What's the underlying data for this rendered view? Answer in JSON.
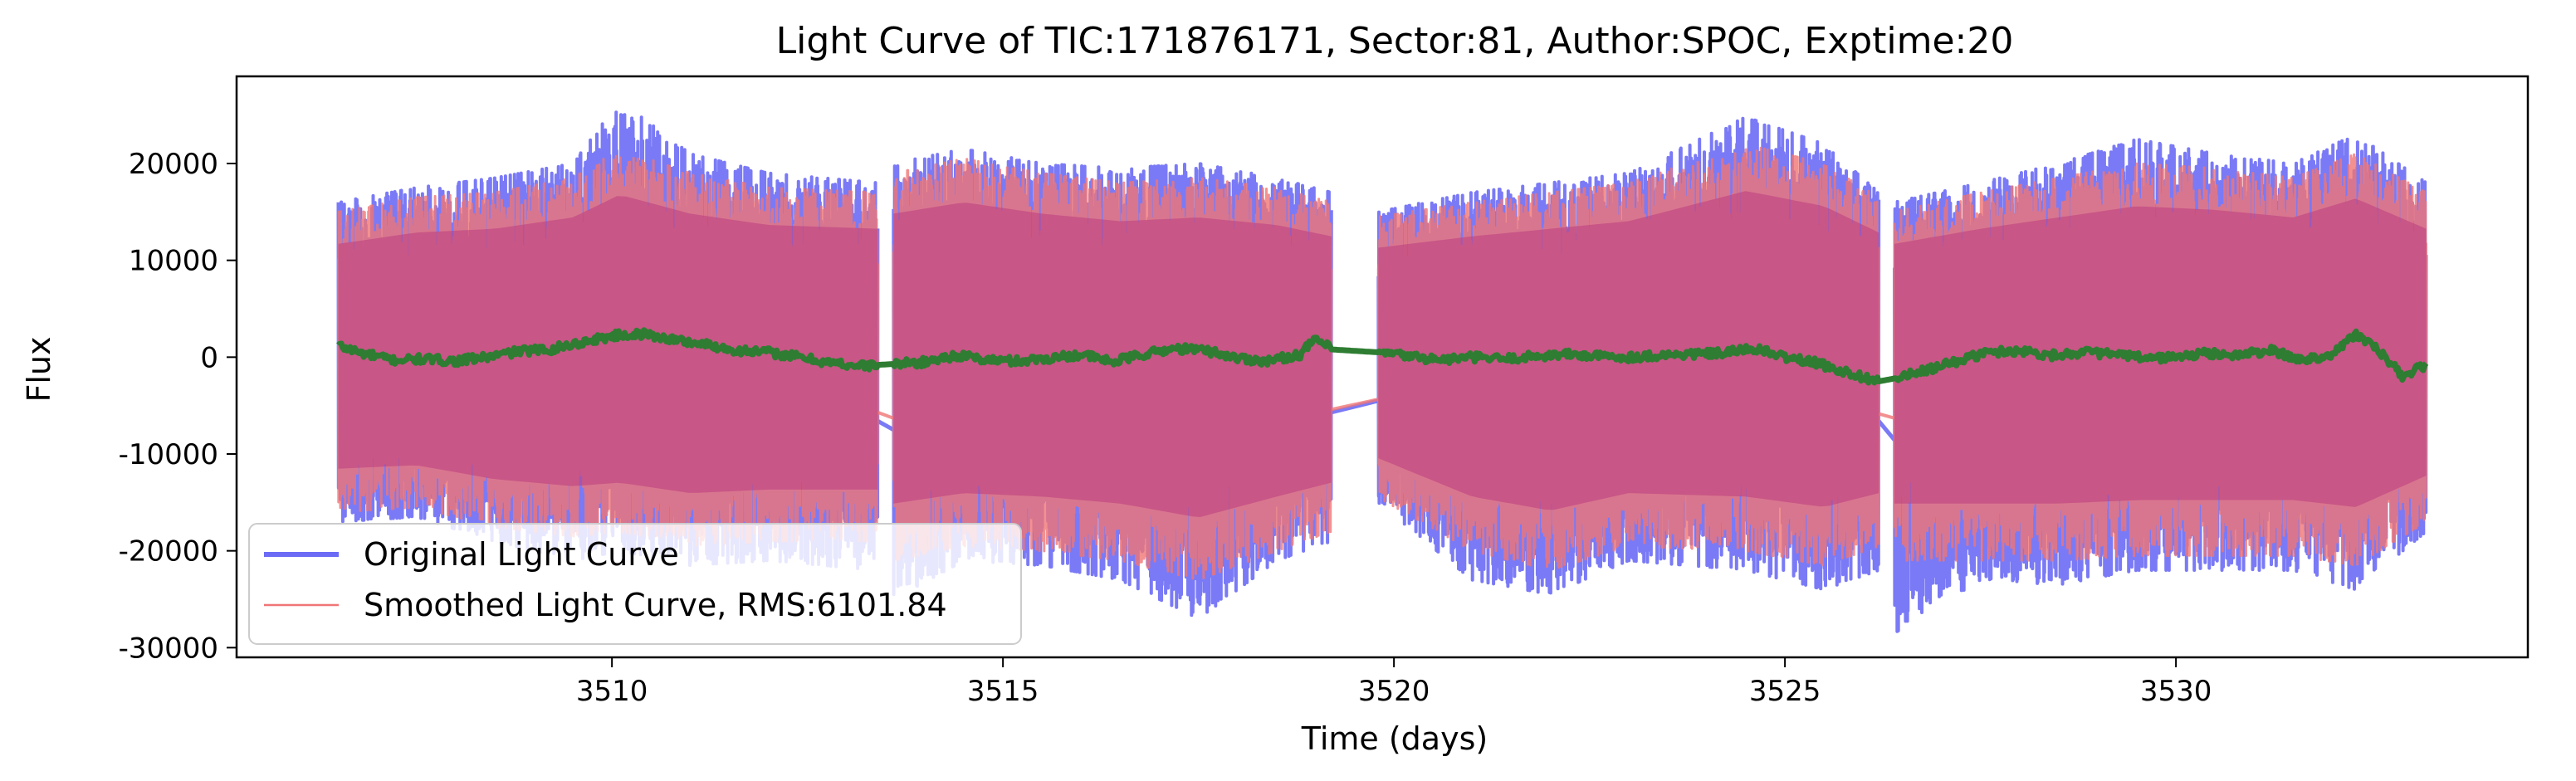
{
  "chart_data": {
    "type": "line",
    "title": "Light Curve of TIC:171876171, Sector:81, Author:SPOC, Exptime:20",
    "xlabel": "Time (days)",
    "ylabel": "Flux",
    "xlim": [
      3505.2,
      3534.5
    ],
    "ylim": [
      -31000,
      29000
    ],
    "xticks": [
      3510,
      3515,
      3520,
      3525,
      3530
    ],
    "yticks": [
      20000,
      10000,
      0,
      -10000,
      -20000,
      -30000
    ],
    "grid": false,
    "legend_position": "lower-left",
    "segments": [
      [
        3506.5,
        3513.4
      ],
      [
        3513.6,
        3519.2
      ],
      [
        3519.8,
        3526.2
      ],
      [
        3526.4,
        3533.2
      ]
    ],
    "series": [
      {
        "name": "Original Light Curve",
        "style": "band",
        "color": "#6b6bf5",
        "envelope": {
          "x": [
            3506.5,
            3507.5,
            3508.5,
            3509.5,
            3510.1,
            3511,
            3512,
            3513.4,
            3513.6,
            3514.5,
            3515.5,
            3516.5,
            3517.5,
            3518.5,
            3519.2,
            3519.8,
            3521,
            3522,
            3523,
            3524.5,
            3525.5,
            3526.2,
            3526.4,
            3527.5,
            3528.5,
            3529.5,
            3530.5,
            3531.5,
            3532.3,
            3533.2
          ],
          "upper": [
            16000,
            17500,
            18500,
            20000,
            26500,
            21000,
            19000,
            18000,
            20000,
            21500,
            20000,
            19500,
            20000,
            18500,
            17000,
            15000,
            17000,
            18000,
            19000,
            24800,
            22000,
            17000,
            16000,
            18000,
            20000,
            22500,
            21000,
            20000,
            23000,
            18000
          ],
          "lower": [
            -17000,
            -16500,
            -19000,
            -21000,
            -20000,
            -21500,
            -21000,
            -22000,
            -25000,
            -21000,
            -21500,
            -23000,
            -27000,
            -21000,
            -19000,
            -15000,
            -23000,
            -24500,
            -21000,
            -22000,
            -24000,
            -22000,
            -28500,
            -23000,
            -23500,
            -22000,
            -22000,
            -22000,
            -24000,
            -18000
          ]
        }
      },
      {
        "name": "Smoothed Light Curve, RMS:6101.84",
        "style": "band",
        "color": "#f07575",
        "envelope": {
          "x": [
            3506.5,
            3507.5,
            3508.5,
            3509.5,
            3510.1,
            3511,
            3512,
            3513.4,
            3513.6,
            3514.5,
            3515.5,
            3516.5,
            3517.5,
            3518.5,
            3519.2,
            3519.8,
            3521,
            3522,
            3523,
            3524.5,
            3525.5,
            3526.2,
            3526.4,
            3527.5,
            3528.5,
            3529.5,
            3530.5,
            3531.5,
            3532.3,
            3533.2
          ],
          "upper": [
            15000,
            16500,
            17000,
            18500,
            21500,
            19000,
            17500,
            17000,
            19000,
            20500,
            19000,
            18000,
            18500,
            17500,
            16000,
            14500,
            16000,
            17000,
            18000,
            22000,
            20000,
            16500,
            15000,
            17000,
            18500,
            20000,
            19500,
            18500,
            21000,
            17000
          ],
          "lower": [
            -16000,
            -15500,
            -17500,
            -18500,
            -18000,
            -19500,
            -19000,
            -19000,
            -21000,
            -19500,
            -20000,
            -21000,
            -23000,
            -20000,
            -18000,
            -14500,
            -20000,
            -22000,
            -19500,
            -20000,
            -21500,
            -19500,
            -21000,
            -21000,
            -21000,
            -20500,
            -20500,
            -20500,
            -21500,
            -17000
          ]
        }
      },
      {
        "name": "",
        "style": "line",
        "color": "#2e7d32",
        "points": {
          "x": [
            3506.5,
            3506.8,
            3507.2,
            3507.6,
            3508,
            3508.4,
            3508.8,
            3509.2,
            3509.6,
            3510,
            3510.4,
            3510.8,
            3511.2,
            3511.6,
            3512,
            3512.4,
            3512.8,
            3513.2,
            3513.4,
            3513.6,
            3514,
            3514.4,
            3514.8,
            3515.2,
            3515.6,
            3516,
            3516.4,
            3516.8,
            3517.2,
            3517.6,
            3518,
            3518.4,
            3518.8,
            3519,
            3519.2,
            3519.8,
            3520.2,
            3520.6,
            3521,
            3521.4,
            3521.8,
            3522.2,
            3522.6,
            3523,
            3523.4,
            3523.8,
            3524.2,
            3524.6,
            3525,
            3525.4,
            3525.8,
            3526.2,
            3526.4,
            3526.8,
            3527.2,
            3527.6,
            3528,
            3528.4,
            3528.8,
            3529.2,
            3529.6,
            3530,
            3530.4,
            3530.8,
            3531.2,
            3531.6,
            3532,
            3532.3,
            3532.6,
            3532.9,
            3533.2
          ],
          "y": [
            1200,
            400,
            -300,
            -200,
            -400,
            0,
            600,
            800,
            1500,
            2200,
            2400,
            1800,
            1300,
            700,
            500,
            0,
            -600,
            -900,
            -800,
            -700,
            -500,
            200,
            -300,
            -400,
            -100,
            300,
            -500,
            300,
            900,
            700,
            -100,
            -400,
            300,
            1900,
            800,
            500,
            100,
            -300,
            0,
            -200,
            100,
            300,
            100,
            0,
            200,
            300,
            400,
            900,
            0,
            -600,
            -1600,
            -2500,
            -2200,
            -1400,
            -400,
            500,
            700,
            200,
            500,
            300,
            -100,
            0,
            400,
            200,
            700,
            -300,
            300,
            2400,
            600,
            -2000,
            -800
          ]
        }
      }
    ]
  }
}
